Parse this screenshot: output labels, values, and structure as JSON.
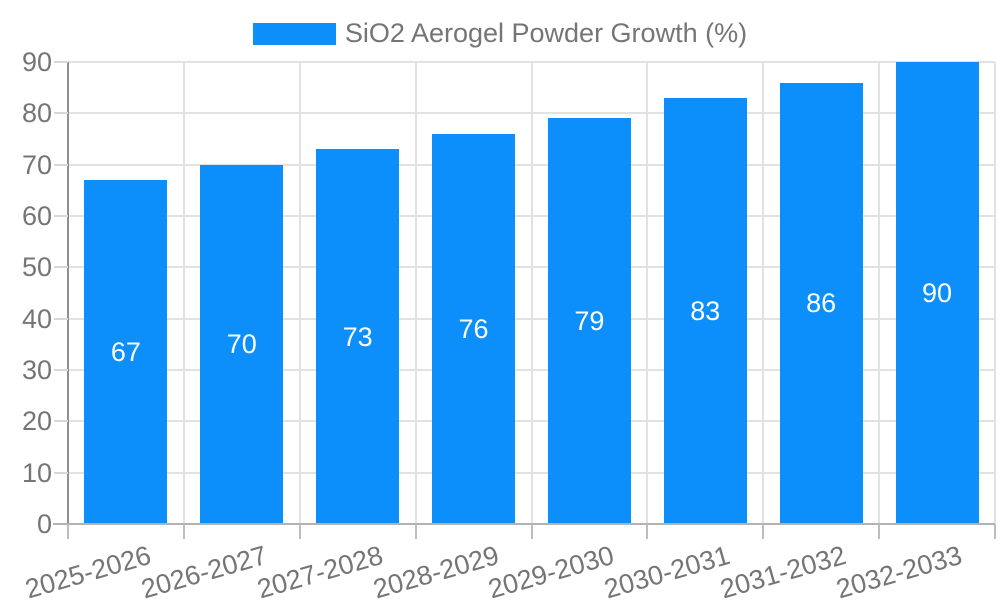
{
  "legend": {
    "position": "top",
    "swatch_color": "#0d8ffb"
  },
  "chart_data": {
    "type": "bar",
    "title": "SiO2 Aerogel Powder Growth (%)",
    "series_name": "SiO2 Aerogel Powder Growth (%)",
    "categories": [
      "2025-2026",
      "2026-2027",
      "2027-2028",
      "2028-2029",
      "2029-2030",
      "2030-2031",
      "2031-2032",
      "2032-2033"
    ],
    "values": [
      67,
      70,
      73,
      76,
      79,
      83,
      86,
      90
    ],
    "xlabel": "",
    "ylabel": "",
    "ylim": [
      0,
      90
    ],
    "y_ticks": [
      0,
      10,
      20,
      30,
      40,
      50,
      60,
      70,
      80,
      90
    ],
    "grid": true,
    "legend_position": "top",
    "value_label_position": "inside-center",
    "colors": {
      "bar": "#0d8ffb",
      "value_label": "#ffffff",
      "axis_text": "#757575",
      "grid": "#e2e2e2",
      "y_axis_line": "#8f8f8f",
      "baseline": "#b2b2b2",
      "x_tick": "#bdbdbd",
      "y_tick": "#d8d8d8",
      "background": "#ffffff"
    }
  }
}
